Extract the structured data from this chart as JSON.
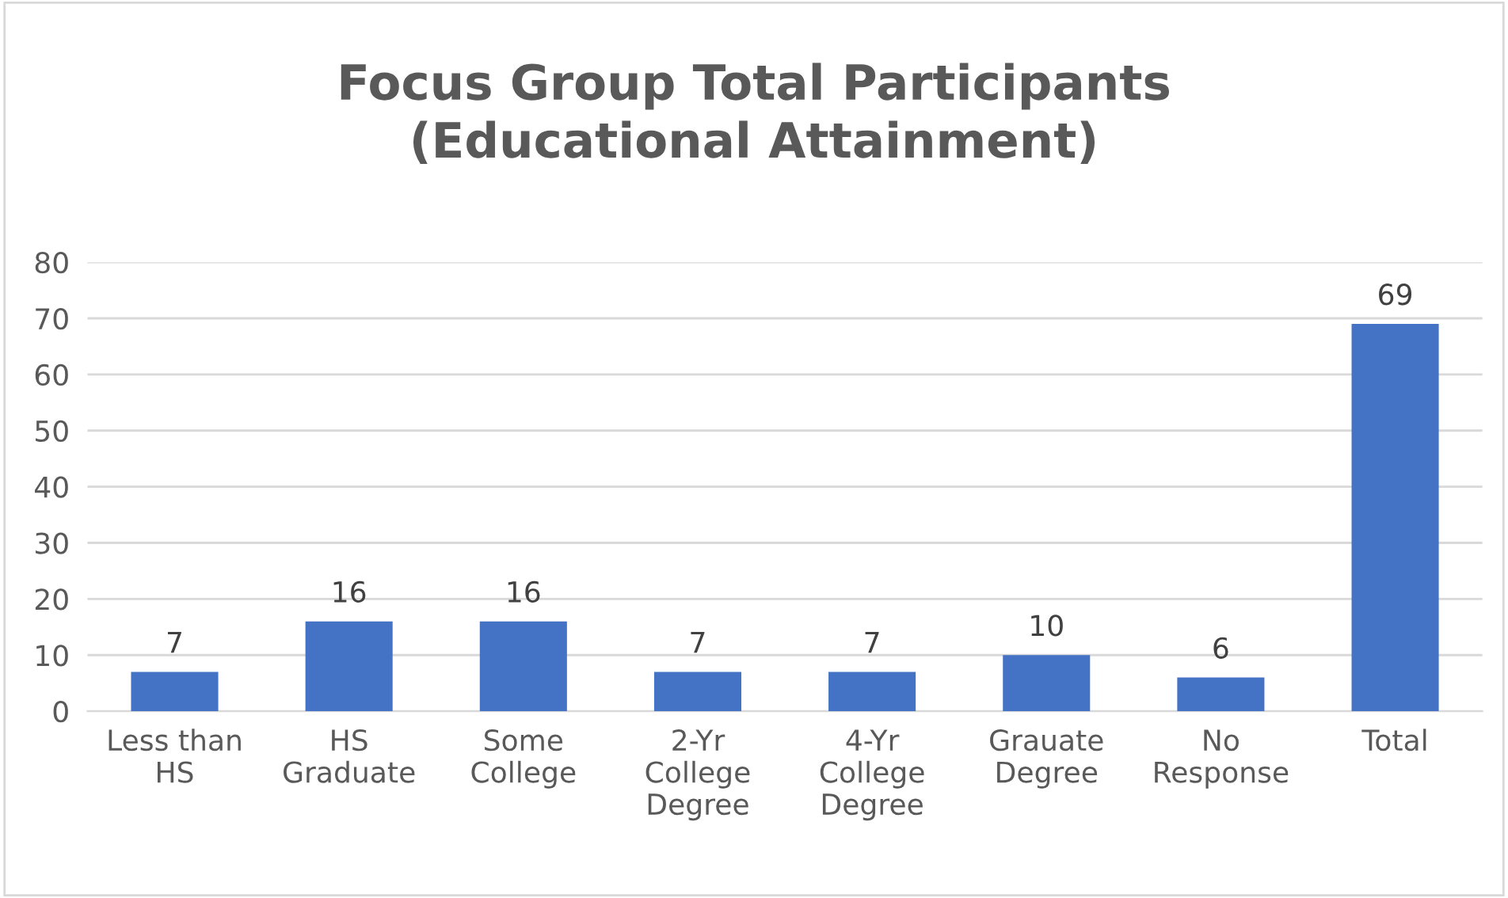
{
  "chart_data": {
    "type": "bar",
    "title": "Focus Group Total Participants\n(Educational Attainment)",
    "categories": [
      "Less than\nHS",
      "HS\nGraduate",
      "Some\nCollege",
      "2-Yr\nCollege\nDegree",
      "4-Yr\nCollege\nDegree",
      "Grauate\nDegree",
      "No\nResponse",
      "Total"
    ],
    "values": [
      7,
      16,
      16,
      7,
      7,
      10,
      6,
      69
    ],
    "color": "#4472c4",
    "ylim": [
      0,
      80
    ],
    "yticks": [
      0,
      10,
      20,
      30,
      40,
      50,
      60,
      70,
      80
    ],
    "grid": "y",
    "data_labels": true,
    "legend": false
  }
}
